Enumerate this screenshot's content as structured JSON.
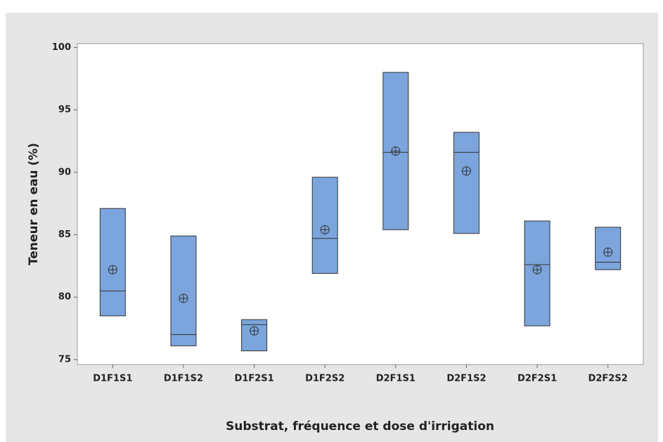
{
  "chart_data": {
    "type": "box",
    "x_label": "Substrat, fréquence et dose d'irrigation",
    "y_label": "Teneur en eau (%)",
    "categories": [
      "D1F1S1",
      "D1F1S2",
      "D1F2S1",
      "D1F2S2",
      "D2F1S1",
      "D2F1S2",
      "D2F2S1",
      "D2F2S2"
    ],
    "q1": [
      78.5,
      76.1,
      75.7,
      81.9,
      85.4,
      85.1,
      77.7,
      82.2
    ],
    "median": [
      80.5,
      77.0,
      77.8,
      84.7,
      91.6,
      91.6,
      82.6,
      82.8
    ],
    "q3": [
      87.1,
      84.9,
      78.2,
      89.6,
      98.0,
      93.2,
      86.1,
      85.6
    ],
    "mean": [
      82.2,
      79.9,
      77.3,
      85.4,
      91.7,
      90.1,
      82.2,
      83.6
    ],
    "color": "#7ba5dc",
    "ylim": [
      74.6,
      100.3
    ],
    "yticks": [
      75,
      80,
      85,
      90,
      95,
      100
    ],
    "grid": false
  }
}
